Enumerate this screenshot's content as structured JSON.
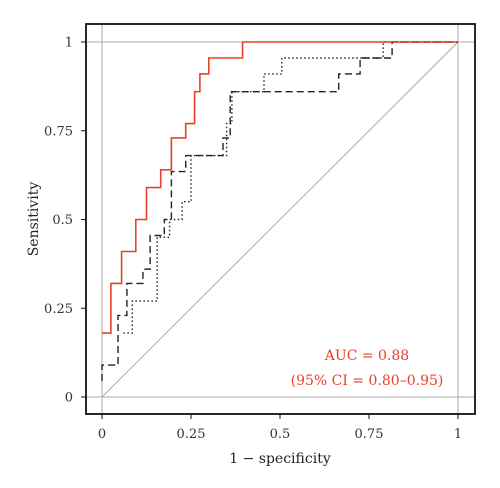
{
  "chart_data": {
    "type": "line",
    "xlabel": "1 − specificity",
    "ylabel": "Sensitivity",
    "xlim": [
      0,
      1
    ],
    "ylim": [
      0,
      1
    ],
    "x_ticks": [
      0,
      0.25,
      0.5,
      0.75,
      1
    ],
    "x_tick_labels": [
      "0",
      "0.25",
      "0.5",
      "0.75",
      "1"
    ],
    "y_ticks": [
      0,
      0.25,
      0.5,
      0.75,
      1
    ],
    "y_tick_labels": [
      "0",
      "0.25",
      "0.5",
      "0.75",
      "1"
    ],
    "grid": false,
    "reference_lines": {
      "vertical": [
        0,
        1
      ],
      "horizontal": [
        0,
        1
      ],
      "diagonal": true,
      "color": "#aaaaaa"
    },
    "annotations": [
      {
        "text": "AUC = 0.88",
        "color": "#e8412b"
      },
      {
        "text": "(95% CI = 0.80–0.95)",
        "color": "#e8412b"
      }
    ],
    "series": [
      {
        "style": "solid",
        "color": "#e8412b",
        "points": [
          [
            0,
            0.18
          ],
          [
            0.025,
            0.18
          ],
          [
            0.025,
            0.32
          ],
          [
            0.055,
            0.32
          ],
          [
            0.055,
            0.41
          ],
          [
            0.095,
            0.41
          ],
          [
            0.095,
            0.5
          ],
          [
            0.125,
            0.5
          ],
          [
            0.125,
            0.59
          ],
          [
            0.165,
            0.59
          ],
          [
            0.165,
            0.64
          ],
          [
            0.195,
            0.64
          ],
          [
            0.195,
            0.73
          ],
          [
            0.235,
            0.73
          ],
          [
            0.235,
            0.77
          ],
          [
            0.26,
            0.77
          ],
          [
            0.26,
            0.86
          ],
          [
            0.275,
            0.86
          ],
          [
            0.275,
            0.91
          ],
          [
            0.3,
            0.91
          ],
          [
            0.3,
            0.955
          ],
          [
            0.395,
            0.955
          ],
          [
            0.395,
            1
          ],
          [
            1,
            1
          ]
        ]
      },
      {
        "style": "dashed",
        "color": "#222222",
        "points": [
          [
            0,
            0.045
          ],
          [
            0,
            0.09
          ],
          [
            0.045,
            0.09
          ],
          [
            0.045,
            0.23
          ],
          [
            0.07,
            0.23
          ],
          [
            0.07,
            0.32
          ],
          [
            0.115,
            0.32
          ],
          [
            0.115,
            0.36
          ],
          [
            0.135,
            0.36
          ],
          [
            0.135,
            0.455
          ],
          [
            0.175,
            0.455
          ],
          [
            0.175,
            0.5
          ],
          [
            0.195,
            0.5
          ],
          [
            0.195,
            0.635
          ],
          [
            0.235,
            0.635
          ],
          [
            0.235,
            0.68
          ],
          [
            0.34,
            0.68
          ],
          [
            0.34,
            0.73
          ],
          [
            0.36,
            0.73
          ],
          [
            0.36,
            0.86
          ],
          [
            0.665,
            0.86
          ],
          [
            0.665,
            0.91
          ],
          [
            0.725,
            0.91
          ],
          [
            0.725,
            0.955
          ],
          [
            0.815,
            0.955
          ],
          [
            0.815,
            1
          ],
          [
            1,
            1
          ]
        ]
      },
      {
        "style": "dotted",
        "color": "#222222",
        "points": [
          [
            0.06,
            0.18
          ],
          [
            0.085,
            0.18
          ],
          [
            0.085,
            0.27
          ],
          [
            0.155,
            0.27
          ],
          [
            0.155,
            0.45
          ],
          [
            0.19,
            0.45
          ],
          [
            0.19,
            0.5
          ],
          [
            0.225,
            0.5
          ],
          [
            0.225,
            0.55
          ],
          [
            0.25,
            0.55
          ],
          [
            0.25,
            0.68
          ],
          [
            0.35,
            0.68
          ],
          [
            0.35,
            0.77
          ],
          [
            0.365,
            0.77
          ],
          [
            0.365,
            0.86
          ],
          [
            0.455,
            0.86
          ],
          [
            0.455,
            0.91
          ],
          [
            0.505,
            0.91
          ],
          [
            0.505,
            0.955
          ],
          [
            0.79,
            0.955
          ],
          [
            0.79,
            1
          ],
          [
            1,
            1
          ]
        ]
      }
    ]
  }
}
